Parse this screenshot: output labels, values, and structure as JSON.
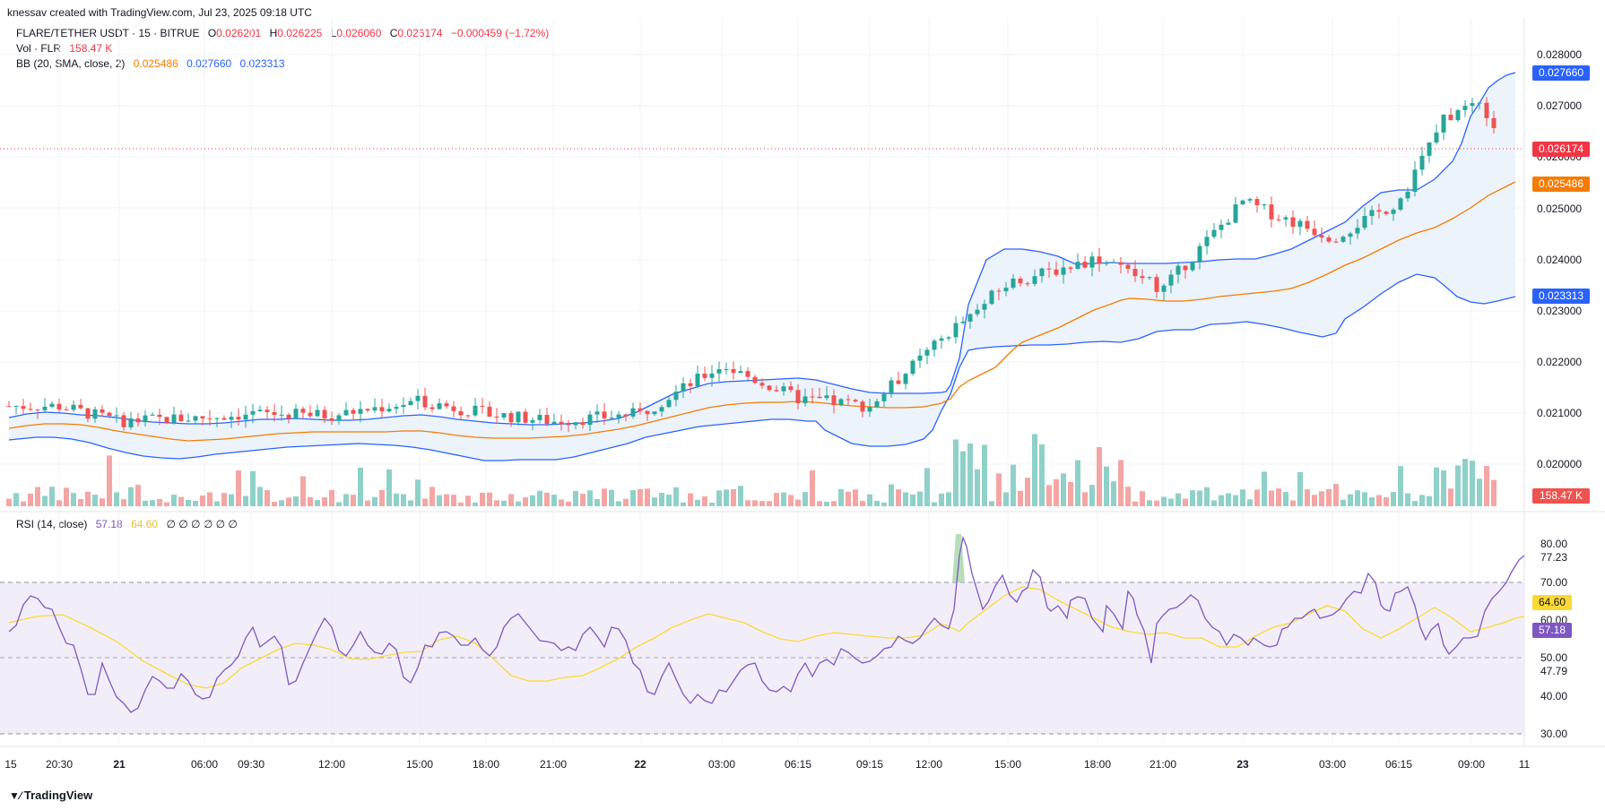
{
  "header": {
    "attribution": "knessav created with TradingView.com, Jul 23, 2025 09:18 UTC"
  },
  "symbol": {
    "name": "FLARE/TETHER USDT · 15 · BITRUE",
    "o_label": "O",
    "o": "0.026201",
    "h_label": "H",
    "h": "0.026225",
    "l_label": "L",
    "l": "0.026060",
    "c_label": "C",
    "c": "0.026174",
    "change": "−0.000459 (−1.72%)"
  },
  "volume_legend": {
    "label": "Vol · FLR",
    "value": "158.47 K"
  },
  "bb_legend": {
    "label": "BB (20, SMA, close, 2)",
    "basis": "0.025486",
    "upper": "0.027660",
    "lower": "0.023313"
  },
  "rsi_legend": {
    "label": "RSI (14, close)",
    "rsi": "57.18",
    "sma": "64.60",
    "extras": "∅ ∅ ∅ ∅ ∅ ∅"
  },
  "price_axis": {
    "ticks": [
      "0.028000",
      "0.027000",
      "0.026000",
      "0.025000",
      "0.024000",
      "0.023000",
      "0.022000",
      "0.021000",
      "0.020000"
    ]
  },
  "price_badges": {
    "upper": "0.027660",
    "last": "0.026174",
    "basis": "0.025486",
    "lower": "0.023313",
    "volume": "158.47 K"
  },
  "rsi_axis": {
    "ticks": [
      "80.00",
      "77.23",
      "70.00",
      "60.00",
      "50.00",
      "47.79",
      "40.00",
      "30.00"
    ]
  },
  "rsi_badges": {
    "sma": "64.60",
    "rsi": "57.18"
  },
  "time_axis": {
    "labels": [
      {
        "text": "15",
        "bold": false
      },
      {
        "text": "20:30",
        "bold": false
      },
      {
        "text": "21",
        "bold": true
      },
      {
        "text": "06:00",
        "bold": false
      },
      {
        "text": "09:30",
        "bold": false
      },
      {
        "text": "12:00",
        "bold": false
      },
      {
        "text": "15:00",
        "bold": false
      },
      {
        "text": "18:00",
        "bold": false
      },
      {
        "text": "21:00",
        "bold": false
      },
      {
        "text": "22",
        "bold": true
      },
      {
        "text": "03:00",
        "bold": false
      },
      {
        "text": "06:15",
        "bold": false
      },
      {
        "text": "09:15",
        "bold": false
      },
      {
        "text": "12:00",
        "bold": false
      },
      {
        "text": "15:00",
        "bold": false
      },
      {
        "text": "18:00",
        "bold": false
      },
      {
        "text": "21:00",
        "bold": false
      },
      {
        "text": "23",
        "bold": true
      },
      {
        "text": "03:00",
        "bold": false
      },
      {
        "text": "06:15",
        "bold": false
      },
      {
        "text": "09:00",
        "bold": false
      },
      {
        "text": "11",
        "bold": false
      }
    ]
  },
  "footer": {
    "logo_text": "TradingView"
  },
  "colors": {
    "up": "#26a69a",
    "down": "#ef5350",
    "vol_up": "#8fd1c8",
    "vol_down": "#f4a6a4",
    "bb_band": "#2962ff",
    "bb_basis": "#f57c00",
    "bb_fill": "#e9f1fb",
    "rsi": "#7e57c2",
    "rsi_sma": "#fdd835",
    "rsi_zone": "#efeaf8",
    "last_line": "#f23645"
  },
  "chart_data": {
    "type": "candlestick",
    "title": "FLARE/TETHER USDT · 15 · BITRUE",
    "ylim": [
      0.0195,
      0.0285
    ],
    "key_points": [
      {
        "time": "20:30",
        "price": 0.0209
      },
      {
        "time": "09:30",
        "price": 0.0207
      },
      {
        "time": "15:00",
        "price": 0.021
      },
      {
        "time": "21:00",
        "price": 0.0206
      },
      {
        "time": "03:00",
        "price": 0.0217
      },
      {
        "time": "09:15",
        "price": 0.0208
      },
      {
        "time": "12:45",
        "price": 0.022
      },
      {
        "time": "15:00",
        "price": 0.0233
      },
      {
        "time": "18:00",
        "price": 0.0238
      },
      {
        "time": "21:00",
        "price": 0.0232
      },
      {
        "time": "00:30",
        "price": 0.0249
      },
      {
        "time": "03:00",
        "price": 0.0241
      },
      {
        "time": "06:15",
        "price": 0.0249
      },
      {
        "time": "07:30",
        "price": 0.027
      },
      {
        "time": "09:00",
        "price": 0.026174
      }
    ],
    "volume_last": 158470,
    "rsi_last": 57.18,
    "rsi_sma_last": 64.6,
    "rsi_bands": [
      70,
      50,
      30
    ]
  }
}
